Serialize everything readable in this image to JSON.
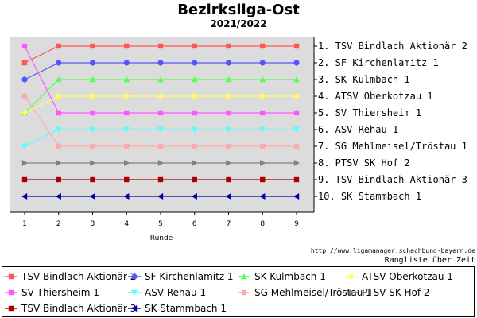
{
  "title": "Bezirksliga-Ost",
  "subtitle": "2021/2022",
  "source_url": "http://www.ligamanager.schachbund-bayern.de",
  "chart_subtitle": "Rangliste über Zeit",
  "chart_data": {
    "type": "line",
    "xlabel": "Runde",
    "ylabel": "",
    "x": [
      1,
      2,
      3,
      4,
      5,
      6,
      7,
      8,
      9
    ],
    "ylim": [
      1,
      10
    ],
    "y_inverted": true,
    "grid": false,
    "background": "#dcdcdc",
    "legend_position": "bottom",
    "rank_labels": [
      "1. TSV Bindlach Aktionär 2",
      "2. SF Kirchenlamitz 1",
      "3. SK Kulmbach 1",
      "4. ATSV Oberkotzau 1",
      "5. SV Thiersheim 1",
      "6. ASV Rehau 1",
      "7. SG Mehlmeisel/Tröstau 1",
      "8. PTSV SK Hof 2",
      "9. TSV Bindlach Aktionär 3",
      "10. SK Stammbach 1"
    ],
    "series": [
      {
        "name": "TSV Bindlach Aktionär 2",
        "color": "#ff5555",
        "marker": "square",
        "values": [
          2,
          1,
          1,
          1,
          1,
          1,
          1,
          1,
          1
        ]
      },
      {
        "name": "SF Kirchenlamitz 1",
        "color": "#5555ff",
        "marker": "circle",
        "values": [
          3,
          2,
          2,
          2,
          2,
          2,
          2,
          2,
          2
        ]
      },
      {
        "name": "SK Kulmbach 1",
        "color": "#55ff55",
        "marker": "triangle-up",
        "values": [
          5,
          3,
          3,
          3,
          3,
          3,
          3,
          3,
          3
        ]
      },
      {
        "name": "ATSV Oberkotzau 1",
        "color": "#ffff55",
        "marker": "diamond",
        "values": [
          5,
          4,
          4,
          4,
          4,
          4,
          4,
          4,
          4
        ]
      },
      {
        "name": "SV Thiersheim 1",
        "color": "#ff55ff",
        "marker": "square",
        "values": [
          1,
          5,
          5,
          5,
          5,
          5,
          5,
          5,
          5
        ]
      },
      {
        "name": "ASV Rehau 1",
        "color": "#55ffff",
        "marker": "triangle-down",
        "values": [
          7,
          6,
          6,
          6,
          6,
          6,
          6,
          6,
          6
        ]
      },
      {
        "name": "SG Mehlmeisel/Tröstau 1",
        "color": "#ffaaaa",
        "marker": "square",
        "values": [
          4,
          7,
          7,
          7,
          7,
          7,
          7,
          7,
          7
        ]
      },
      {
        "name": "PTSV SK Hof 2",
        "color": "#808080",
        "marker": "triangle-right",
        "values": [
          8,
          8,
          8,
          8,
          8,
          8,
          8,
          8,
          8
        ]
      },
      {
        "name": "TSV Bindlach Aktionär 3",
        "color": "#aa0000",
        "marker": "square",
        "values": [
          9,
          9,
          9,
          9,
          9,
          9,
          9,
          9,
          9
        ]
      },
      {
        "name": "SK Stammbach 1",
        "color": "#0000aa",
        "marker": "triangle-left",
        "values": [
          10,
          10,
          10,
          10,
          10,
          10,
          10,
          10,
          10
        ]
      }
    ]
  }
}
